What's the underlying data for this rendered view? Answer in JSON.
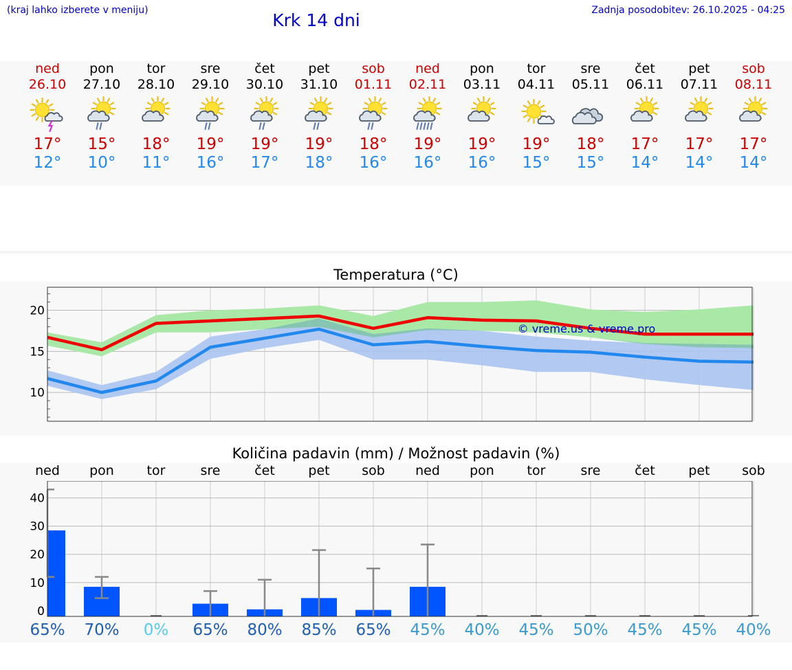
{
  "header": {
    "hint": "(kraj lahko izberete v meniju)",
    "title": "Krk 14 dni",
    "updated": "Zadnja posodobitev: 26.10.2025 - 04:25"
  },
  "days": [
    {
      "name": "ned",
      "date": "26.10",
      "weekend": true,
      "icon": "sun-cloud-thunder-icon",
      "hi": "17°",
      "lo": "12°"
    },
    {
      "name": "pon",
      "date": "27.10",
      "weekend": false,
      "icon": "sun-cloud-rain-icon",
      "hi": "15°",
      "lo": "10°"
    },
    {
      "name": "tor",
      "date": "28.10",
      "weekend": false,
      "icon": "sun-cloud-icon",
      "hi": "18°",
      "lo": "11°"
    },
    {
      "name": "sre",
      "date": "29.10",
      "weekend": false,
      "icon": "sun-cloud-rain-icon",
      "hi": "19°",
      "lo": "16°"
    },
    {
      "name": "čet",
      "date": "30.10",
      "weekend": false,
      "icon": "sun-cloud-rain-icon",
      "hi": "19°",
      "lo": "17°"
    },
    {
      "name": "pet",
      "date": "31.10",
      "weekend": false,
      "icon": "sun-cloud-rain-icon",
      "hi": "19°",
      "lo": "18°"
    },
    {
      "name": "sob",
      "date": "01.11",
      "weekend": true,
      "icon": "sun-cloud-rain-icon",
      "hi": "18°",
      "lo": "16°"
    },
    {
      "name": "ned",
      "date": "02.11",
      "weekend": true,
      "icon": "sun-cloud-heavy-rain-icon",
      "hi": "19°",
      "lo": "16°"
    },
    {
      "name": "pon",
      "date": "03.11",
      "weekend": false,
      "icon": "sun-cloud-icon",
      "hi": "19°",
      "lo": "16°"
    },
    {
      "name": "tor",
      "date": "04.11",
      "weekend": false,
      "icon": "sun-small-cloud-icon",
      "hi": "19°",
      "lo": "15°"
    },
    {
      "name": "sre",
      "date": "05.11",
      "weekend": false,
      "icon": "cloudy-icon",
      "hi": "18°",
      "lo": "15°"
    },
    {
      "name": "čet",
      "date": "06.11",
      "weekend": false,
      "icon": "sun-cloud-icon",
      "hi": "17°",
      "lo": "14°"
    },
    {
      "name": "pet",
      "date": "07.11",
      "weekend": false,
      "icon": "sun-cloud-icon",
      "hi": "17°",
      "lo": "14°"
    },
    {
      "name": "sob",
      "date": "08.11",
      "weekend": true,
      "icon": "sun-cloud-icon",
      "hi": "17°",
      "lo": "14°"
    }
  ],
  "colors": {
    "hi": "#ee0000",
    "lo": "#2288ee",
    "hi_band": "#aae8a8",
    "lo_band": "#aac4f0",
    "overlap": "#7fc4a8",
    "bar": "#0055ff",
    "err": "#888888"
  },
  "chart_data": [
    {
      "type": "line",
      "title": "Temperatura (°C)",
      "watermark": "© vreme.us & vreme.pro",
      "ylim": [
        6.5,
        22.8
      ],
      "yticks": [
        10,
        15,
        20
      ],
      "x": [
        "ned",
        "pon",
        "tor",
        "sre",
        "čet",
        "pet",
        "sob",
        "ned",
        "pon",
        "tor",
        "sre",
        "čet",
        "pet",
        "sob"
      ],
      "series": [
        {
          "role": "max",
          "values": [
            16.7,
            15.2,
            18.4,
            18.7,
            19.0,
            19.3,
            17.8,
            19.1,
            18.8,
            18.7,
            17.8,
            17.1,
            17.1,
            17.1
          ],
          "band_low": [
            15.7,
            14.4,
            17.3,
            17.3,
            17.7,
            18.0,
            16.7,
            17.6,
            17.5,
            17.3,
            16.7,
            15.9,
            15.5,
            15.4
          ],
          "band_high": [
            17.3,
            16.1,
            19.4,
            20.0,
            20.2,
            20.6,
            19.3,
            21.0,
            21.0,
            21.2,
            20.1,
            19.8,
            20.1,
            20.6
          ]
        },
        {
          "role": "min",
          "values": [
            11.7,
            10.0,
            11.4,
            15.5,
            16.6,
            17.7,
            15.8,
            16.2,
            15.6,
            15.1,
            14.9,
            14.3,
            13.8,
            13.7
          ],
          "band_low": [
            10.8,
            9.2,
            10.4,
            14.1,
            15.4,
            16.4,
            14.0,
            14.0,
            13.3,
            12.5,
            12.5,
            11.6,
            10.9,
            10.3
          ],
          "band_high": [
            12.7,
            10.9,
            12.5,
            16.8,
            17.7,
            19.0,
            17.1,
            17.8,
            17.5,
            16.8,
            16.3,
            16.0,
            15.9,
            15.8
          ]
        }
      ]
    },
    {
      "type": "bar",
      "title": "Količina padavin (mm) / Možnost padavin (%)",
      "ylim": [
        -2,
        46
      ],
      "yticks": [
        0,
        10,
        20,
        30,
        40
      ],
      "categories": [
        "ned",
        "pon",
        "tor",
        "sre",
        "čet",
        "pet",
        "sob",
        "ned",
        "pon",
        "tor",
        "sre",
        "čet",
        "pet",
        "sob"
      ],
      "values": [
        28.5,
        8.5,
        0,
        2.5,
        0.5,
        4.5,
        0.3,
        8.5,
        0,
        0,
        0,
        0,
        0,
        0
      ],
      "err_low": [
        12,
        4.5,
        0,
        0,
        0,
        0,
        0,
        0,
        0,
        0,
        0,
        0,
        0,
        0
      ],
      "err_high": [
        43,
        12,
        0,
        7,
        11,
        21.5,
        15,
        23.5,
        0,
        0,
        0,
        0,
        0,
        0
      ],
      "probability": [
        "65%",
        "70%",
        "0%",
        "65%",
        "80%",
        "85%",
        "65%",
        "45%",
        "40%",
        "45%",
        "50%",
        "45%",
        "45%",
        "40%"
      ],
      "probability_values": [
        65,
        70,
        0,
        65,
        80,
        85,
        65,
        45,
        40,
        45,
        50,
        45,
        45,
        40
      ]
    }
  ]
}
